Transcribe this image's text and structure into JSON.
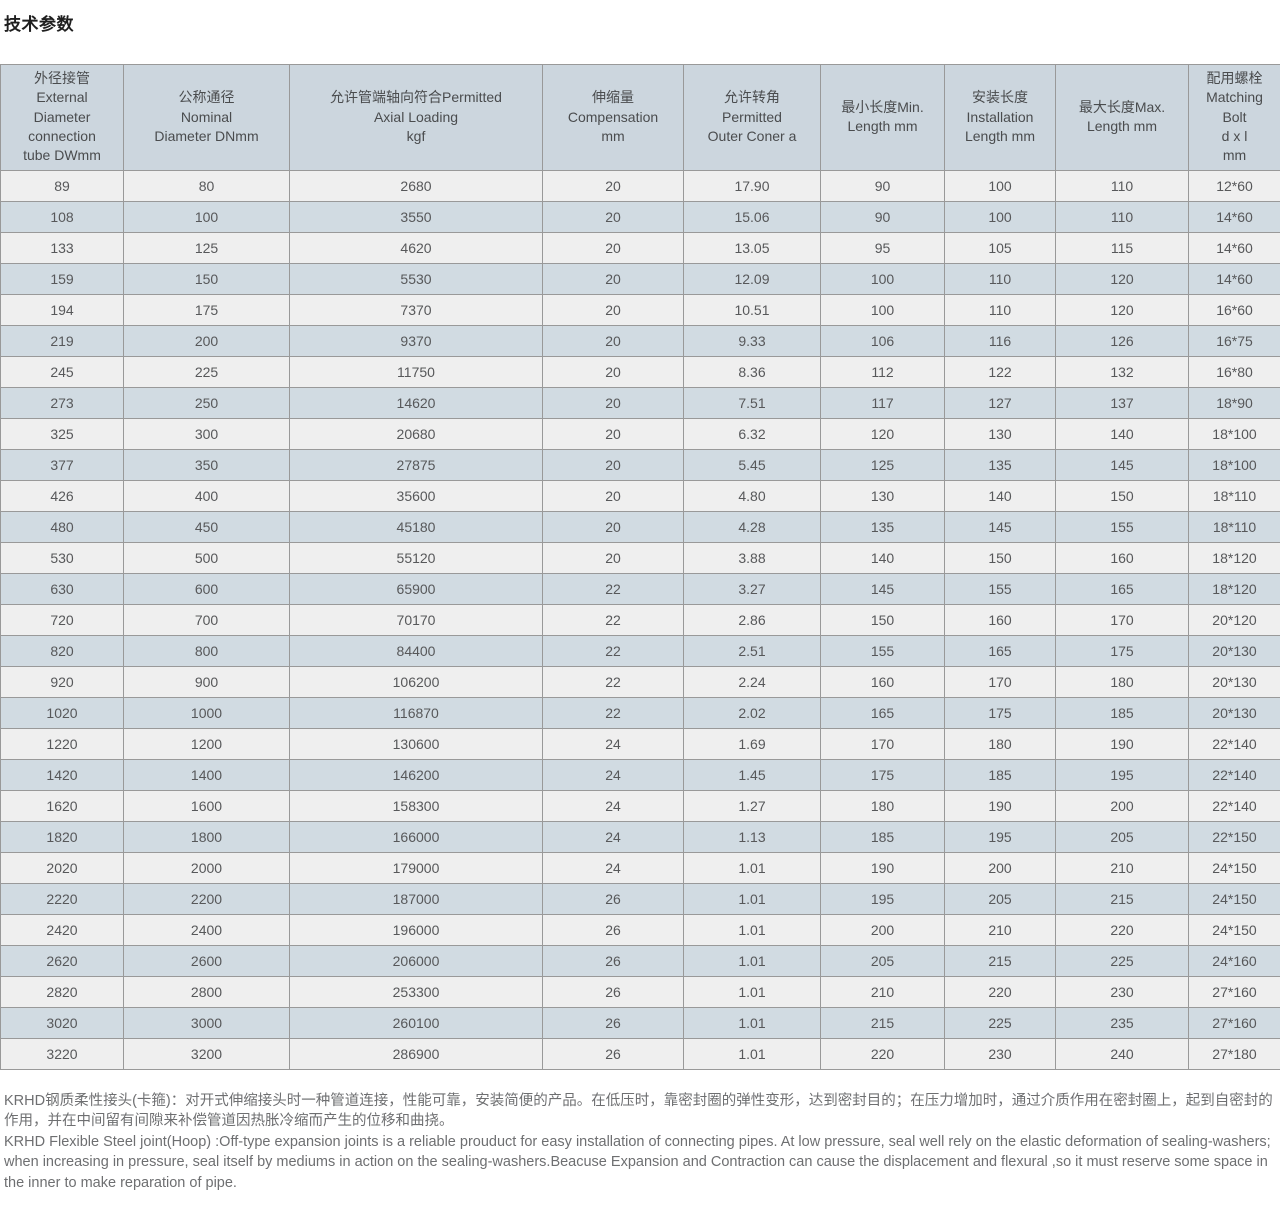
{
  "page": {
    "title": "技术参数"
  },
  "colors": {
    "header-bg": "#ccd6de",
    "row-light": "#efefef",
    "row-dark": "#d1dbe2",
    "grid-line": "#999999"
  },
  "table": {
    "headers": [
      "外径接管\nExternal\nDiameter\nconnection\ntube DWmm",
      "公称通径\nNominal\nDiameter DNmm",
      "允许管端轴向符合Permitted\nAxial Loading\nkgf",
      "伸缩量\nCompensation\nmm",
      "允许转角\nPermitted\nOuter Coner a",
      "最小长度Min.\nLength mm",
      "安装长度\nInstallation\nLength mm",
      "最大长度Max.\nLength mm",
      "配用螺栓\nMatching\nBolt\nd x l\nmm"
    ],
    "rows": [
      [
        "89",
        "80",
        "2680",
        "20",
        "17.90",
        "90",
        "100",
        "110",
        "12*60"
      ],
      [
        "108",
        "100",
        "3550",
        "20",
        "15.06",
        "90",
        "100",
        "110",
        "14*60"
      ],
      [
        "133",
        "125",
        "4620",
        "20",
        "13.05",
        "95",
        "105",
        "115",
        "14*60"
      ],
      [
        "159",
        "150",
        "5530",
        "20",
        "12.09",
        "100",
        "110",
        "120",
        "14*60"
      ],
      [
        "194",
        "175",
        "7370",
        "20",
        "10.51",
        "100",
        "110",
        "120",
        "16*60"
      ],
      [
        "219",
        "200",
        "9370",
        "20",
        "9.33",
        "106",
        "116",
        "126",
        "16*75"
      ],
      [
        "245",
        "225",
        "11750",
        "20",
        "8.36",
        "112",
        "122",
        "132",
        "16*80"
      ],
      [
        "273",
        "250",
        "14620",
        "20",
        "7.51",
        "117",
        "127",
        "137",
        "18*90"
      ],
      [
        "325",
        "300",
        "20680",
        "20",
        "6.32",
        "120",
        "130",
        "140",
        "18*100"
      ],
      [
        "377",
        "350",
        "27875",
        "20",
        "5.45",
        "125",
        "135",
        "145",
        "18*100"
      ],
      [
        "426",
        "400",
        "35600",
        "20",
        "4.80",
        "130",
        "140",
        "150",
        "18*110"
      ],
      [
        "480",
        "450",
        "45180",
        "20",
        "4.28",
        "135",
        "145",
        "155",
        "18*110"
      ],
      [
        "530",
        "500",
        "55120",
        "20",
        "3.88",
        "140",
        "150",
        "160",
        "18*120"
      ],
      [
        "630",
        "600",
        "65900",
        "22",
        "3.27",
        "145",
        "155",
        "165",
        "18*120"
      ],
      [
        "720",
        "700",
        "70170",
        "22",
        "2.86",
        "150",
        "160",
        "170",
        "20*120"
      ],
      [
        "820",
        "800",
        "84400",
        "22",
        "2.51",
        "155",
        "165",
        "175",
        "20*130"
      ],
      [
        "920",
        "900",
        "106200",
        "22",
        "2.24",
        "160",
        "170",
        "180",
        "20*130"
      ],
      [
        "1020",
        "1000",
        "116870",
        "22",
        "2.02",
        "165",
        "175",
        "185",
        "20*130"
      ],
      [
        "1220",
        "1200",
        "130600",
        "24",
        "1.69",
        "170",
        "180",
        "190",
        "22*140"
      ],
      [
        "1420",
        "1400",
        "146200",
        "24",
        "1.45",
        "175",
        "185",
        "195",
        "22*140"
      ],
      [
        "1620",
        "1600",
        "158300",
        "24",
        "1.27",
        "180",
        "190",
        "200",
        "22*140"
      ],
      [
        "1820",
        "1800",
        "166000",
        "24",
        "1.13",
        "185",
        "195",
        "205",
        "22*150"
      ],
      [
        "2020",
        "2000",
        "179000",
        "24",
        "1.01",
        "190",
        "200",
        "210",
        "24*150"
      ],
      [
        "2220",
        "2200",
        "187000",
        "26",
        "1.01",
        "195",
        "205",
        "215",
        "24*150"
      ],
      [
        "2420",
        "2400",
        "196000",
        "26",
        "1.01",
        "200",
        "210",
        "220",
        "24*150"
      ],
      [
        "2620",
        "2600",
        "206000",
        "26",
        "1.01",
        "205",
        "215",
        "225",
        "24*160"
      ],
      [
        "2820",
        "2800",
        "253300",
        "26",
        "1.01",
        "210",
        "220",
        "230",
        "27*160"
      ],
      [
        "3020",
        "3000",
        "260100",
        "26",
        "1.01",
        "215",
        "225",
        "235",
        "27*160"
      ],
      [
        "3220",
        "3200",
        "286900",
        "26",
        "1.01",
        "220",
        "230",
        "240",
        "27*180"
      ]
    ]
  },
  "notes": {
    "cn": "KRHD钢质柔性接头(卡箍)：对开式伸缩接头时一种管道连接，性能可靠，安装简便的产品。在低压时，靠密封圈的弹性变形，达到密封目的；在压力增加时，通过介质作用在密封圈上，起到自密封的作用，并在中间留有间隙来补偿管道因热胀冷缩而产生的位移和曲挠。",
    "en": "KRHD Flexible Steel joint(Hoop) :Off-type expansion joints is a reliable prouduct for easy installation of connecting pipes. At low pressure, seal well rely on the elastic deformation of sealing-washers; when increasing in pressure, seal itself by mediums in action on the sealing-washers.Beacuse Expansion and Contraction can cause the displacement and flexural ,so it must reserve some space in the inner to make reparation of pipe."
  }
}
